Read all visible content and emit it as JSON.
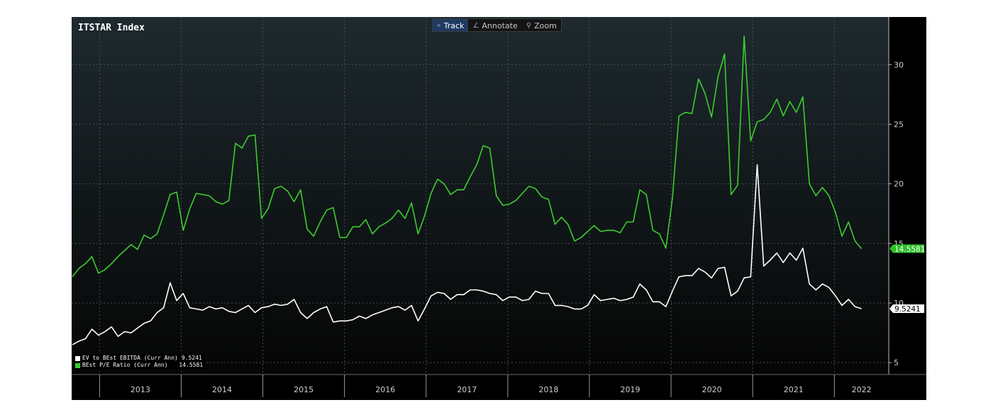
{
  "toolbar": {
    "track_label": "Track",
    "annotate_label": "Annotate",
    "zoom_label": "Zoom",
    "track_icon": "crosshair-icon",
    "annotate_icon": "pencil-icon",
    "zoom_icon": "magnifier-icon",
    "active_color": "#1f3b63"
  },
  "chart_data": {
    "type": "line",
    "title": "ITSTAR Index",
    "background": "#000000",
    "x_start": "2012-09",
    "x_end": "2022-09",
    "ylim": [
      4,
      34
    ],
    "y_ticks": [
      5,
      10,
      15,
      20,
      25,
      30
    ],
    "x_tick_labels": [
      "2013",
      "2014",
      "2015",
      "2016",
      "2017",
      "2018",
      "2019",
      "2020",
      "2021",
      "2022"
    ],
    "grid": true,
    "legend_position": "bottom-left",
    "series": [
      {
        "name": "EV to BEst EBITDA (Curr Ann)",
        "color": "#ffffff",
        "last_value": "9.5241",
        "values": [
          6.5,
          6.8,
          7.0,
          7.8,
          7.3,
          7.6,
          8.0,
          7.2,
          7.6,
          7.5,
          7.9,
          8.3,
          8.5,
          9.2,
          9.6,
          11.7,
          10.2,
          10.8,
          9.6,
          9.5,
          9.4,
          9.7,
          9.5,
          9.6,
          9.3,
          9.2,
          9.5,
          9.8,
          9.2,
          9.6,
          9.7,
          9.9,
          9.8,
          9.9,
          10.3,
          9.2,
          8.7,
          9.2,
          9.5,
          9.7,
          8.4,
          8.5,
          8.5,
          8.6,
          8.9,
          8.7,
          9.0,
          9.2,
          9.4,
          9.6,
          9.7,
          9.4,
          9.8,
          8.5,
          9.5,
          10.6,
          10.9,
          10.8,
          10.3,
          10.7,
          10.7,
          11.1,
          11.1,
          11.0,
          10.8,
          10.7,
          10.2,
          10.5,
          10.5,
          10.2,
          10.3,
          11.0,
          10.8,
          10.8,
          9.8,
          9.8,
          9.7,
          9.5,
          9.5,
          9.8,
          10.7,
          10.2,
          10.3,
          10.4,
          10.2,
          10.3,
          10.5,
          11.6,
          11.1,
          10.1,
          10.1,
          9.7,
          11.0,
          12.2,
          12.3,
          12.3,
          12.9,
          12.6,
          12.1,
          12.9,
          13.0,
          10.6,
          11.0,
          12.1,
          12.2,
          21.6,
          13.1,
          13.6,
          14.2,
          13.4,
          14.2,
          13.6,
          14.6,
          11.6,
          11.1,
          11.6,
          11.3,
          10.6,
          9.8,
          10.3,
          9.7,
          9.5241
        ]
      },
      {
        "name": "BEst P/E Ratio (Curr Ann)",
        "color": "#3dcc2f",
        "last_value": "14.5581",
        "values": [
          12.2,
          12.9,
          13.3,
          13.9,
          12.5,
          12.8,
          13.3,
          13.9,
          14.4,
          14.9,
          14.5,
          15.7,
          15.4,
          15.8,
          17.4,
          19.1,
          19.3,
          16.1,
          17.9,
          19.2,
          19.1,
          19.0,
          18.5,
          18.3,
          18.6,
          23.4,
          23.0,
          24.0,
          24.1,
          17.1,
          17.9,
          19.6,
          19.8,
          19.4,
          18.5,
          19.5,
          16.2,
          15.6,
          16.8,
          17.8,
          18.0,
          15.5,
          15.5,
          16.4,
          16.4,
          17.0,
          15.8,
          16.4,
          16.7,
          17.1,
          17.8,
          17.1,
          18.4,
          15.8,
          17.3,
          19.2,
          20.4,
          20.0,
          19.1,
          19.5,
          19.5,
          20.6,
          21.6,
          23.2,
          23.0,
          19.0,
          18.2,
          18.3,
          18.6,
          19.2,
          19.8,
          19.6,
          18.9,
          18.7,
          16.6,
          17.2,
          16.6,
          15.2,
          15.5,
          16.0,
          16.5,
          16.0,
          16.1,
          16.1,
          15.9,
          16.8,
          16.8,
          19.5,
          19.1,
          16.1,
          15.8,
          14.6,
          18.8,
          25.7,
          26.0,
          25.9,
          28.8,
          27.6,
          25.6,
          29.0,
          30.9,
          19.1,
          19.9,
          32.4,
          23.6,
          25.2,
          25.4,
          26.0,
          27.1,
          25.7,
          26.9,
          26.0,
          27.3,
          20.0,
          19.0,
          19.7,
          19.0,
          17.6,
          15.6,
          16.8,
          15.2,
          14.5581
        ]
      }
    ]
  }
}
